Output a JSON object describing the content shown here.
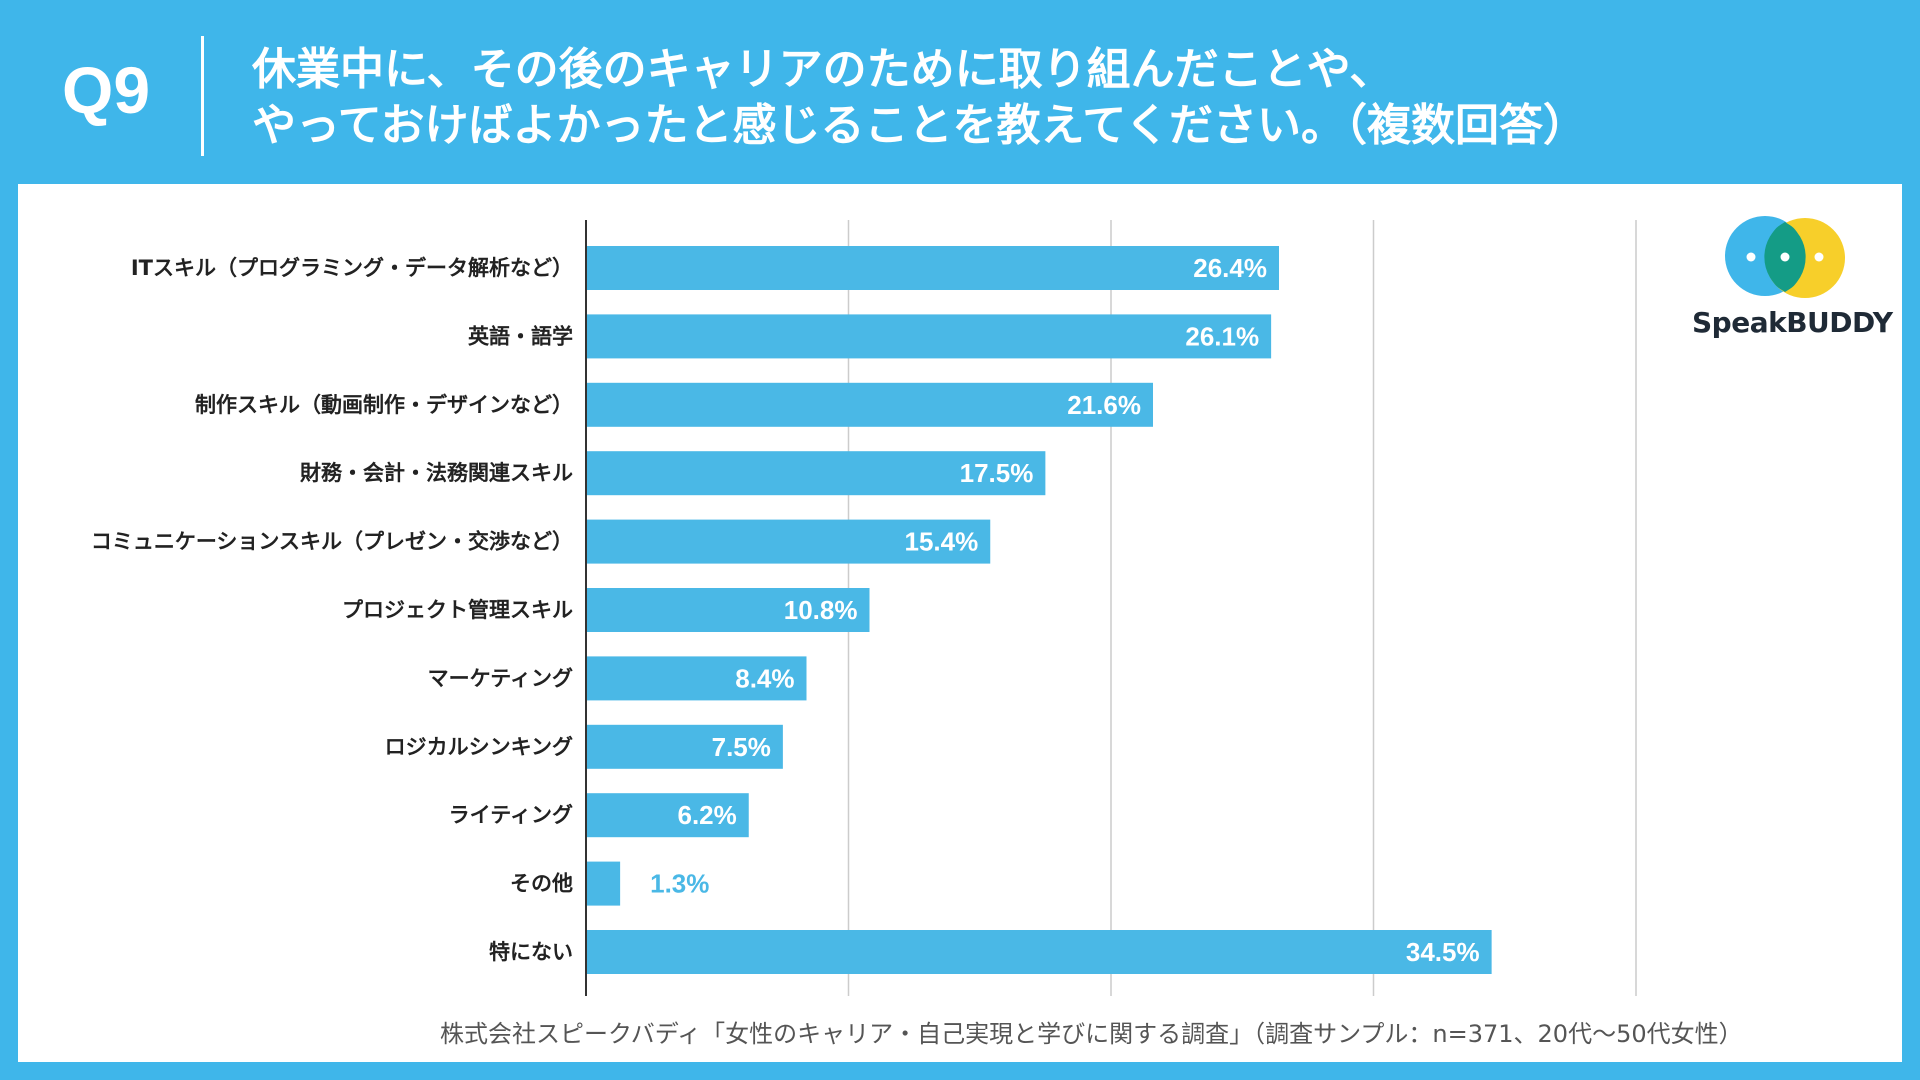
{
  "header": {
    "q_label": "Q9",
    "title_line1": "休業中に、その後のキャリアのために取り組んだことや、",
    "title_line2": "やっておけばよかったと感じることを教えてください。（複数回答）"
  },
  "logo": {
    "text": "SpeakBUDDY"
  },
  "source": "株式会社スピークバディ「女性のキャリア・自己実現と学びに関する調査」（調査サンプル：n=371、20代〜50代女性）",
  "colors": {
    "background": "#3fb6ea",
    "bar": "#4ab8e6",
    "grid": "#cccccc",
    "value_text_inside": "#ffffff",
    "value_text_outside": "#4ab8e6"
  },
  "chart_data": {
    "type": "bar",
    "orientation": "horizontal",
    "title": "",
    "xlabel": "",
    "ylabel": "",
    "xlim": [
      0,
      40
    ],
    "grid": true,
    "categories": [
      "ITスキル（プログラミング・データ解析など）",
      "英語・語学",
      "制作スキル（動画制作・デザインなど）",
      "財務・会計・法務関連スキル",
      "コミュニケーションスキル（プレゼン・交渉など）",
      "プロジェクト管理スキル",
      "マーケティング",
      "ロジカルシンキング",
      "ライティング",
      "その他",
      "特にない"
    ],
    "values": [
      26.4,
      26.1,
      21.6,
      17.5,
      15.4,
      10.8,
      8.4,
      7.5,
      6.2,
      1.3,
      34.5
    ],
    "value_labels": [
      "26.4%",
      "26.1%",
      "21.6%",
      "17.5%",
      "15.4%",
      "10.8%",
      "8.4%",
      "7.5%",
      "6.2%",
      "1.3%",
      "34.5%"
    ]
  }
}
